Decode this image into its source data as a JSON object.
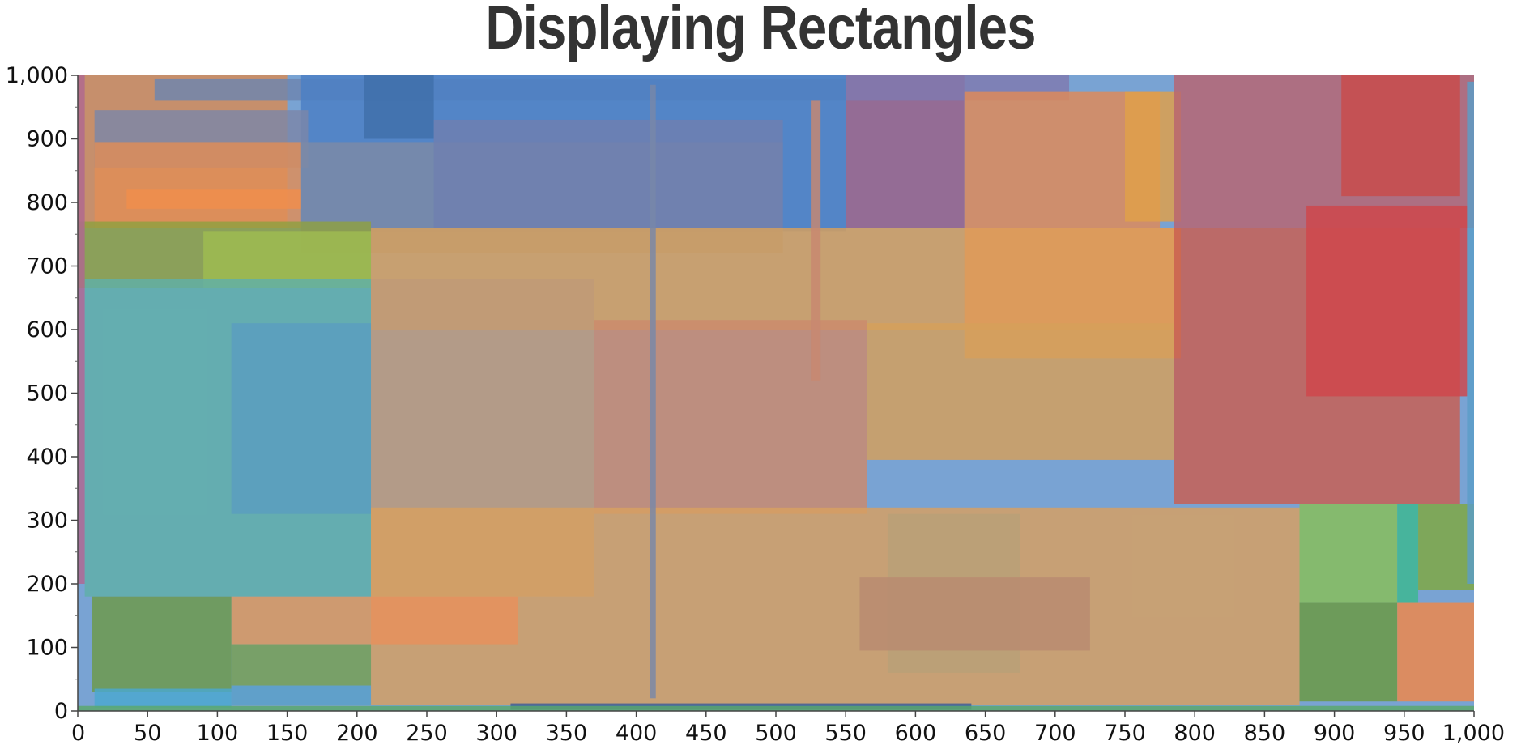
{
  "chart_data": {
    "type": "rectangles",
    "title": "Displaying Rectangles",
    "xlabel": "",
    "ylabel": "",
    "xlim": [
      0,
      1000
    ],
    "ylim": [
      0,
      1000
    ],
    "x_ticks": [
      "0",
      "50",
      "100",
      "150",
      "200",
      "250",
      "300",
      "350",
      "400",
      "450",
      "500",
      "550",
      "600",
      "650",
      "700",
      "750",
      "800",
      "850",
      "900",
      "950",
      "1,000"
    ],
    "y_ticks": [
      "0",
      "100",
      "200",
      "300",
      "400",
      "500",
      "600",
      "700",
      "800",
      "900",
      "1,000"
    ],
    "grid": false,
    "legend": "none",
    "rectangles": [
      {
        "x1": 0,
        "x2": 1000,
        "y1": 0,
        "y2": 1000,
        "color": "#5b8fc9"
      },
      {
        "x1": 0,
        "x2": 150,
        "y1": 760,
        "y2": 1000,
        "color": "#d78b55"
      },
      {
        "x1": 55,
        "x2": 550,
        "y1": 960,
        "y2": 995,
        "color": "#6d85b0"
      },
      {
        "x1": 160,
        "x2": 550,
        "y1": 755,
        "y2": 1000,
        "color": "#4a7fc4"
      },
      {
        "x1": 205,
        "x2": 255,
        "y1": 900,
        "y2": 1000,
        "color": "#3f6faa"
      },
      {
        "x1": 12,
        "x2": 165,
        "y1": 855,
        "y2": 945,
        "color": "#7b86a8"
      },
      {
        "x1": 12,
        "x2": 160,
        "y1": 760,
        "y2": 895,
        "color": "#e08d57"
      },
      {
        "x1": 35,
        "x2": 160,
        "y1": 790,
        "y2": 820,
        "color": "#f08d4c"
      },
      {
        "x1": 160,
        "x2": 505,
        "y1": 720,
        "y2": 895,
        "color": "#7d8aa6"
      },
      {
        "x1": 255,
        "x2": 505,
        "y1": 760,
        "y2": 930,
        "color": "#6f7fb0"
      },
      {
        "x1": 550,
        "x2": 635,
        "y1": 760,
        "y2": 1000,
        "color": "#9a6088"
      },
      {
        "x1": 550,
        "x2": 710,
        "y1": 960,
        "y2": 1000,
        "color": "#7f7ab0"
      },
      {
        "x1": 635,
        "x2": 775,
        "y1": 760,
        "y2": 975,
        "color": "#e08a57"
      },
      {
        "x1": 750,
        "x2": 790,
        "y1": 770,
        "y2": 975,
        "color": "#e0a048"
      },
      {
        "x1": 785,
        "x2": 1000,
        "y1": 760,
        "y2": 1000,
        "color": "#b86470"
      },
      {
        "x1": 905,
        "x2": 990,
        "y1": 810,
        "y2": 1000,
        "color": "#c94a4a"
      },
      {
        "x1": 0,
        "x2": 210,
        "y1": 665,
        "y2": 770,
        "color": "#8fa040"
      },
      {
        "x1": 90,
        "x2": 210,
        "y1": 665,
        "y2": 755,
        "color": "#9fbc50"
      },
      {
        "x1": 210,
        "x2": 790,
        "y1": 600,
        "y2": 760,
        "color": "#d8a05c"
      },
      {
        "x1": 635,
        "x2": 790,
        "y1": 555,
        "y2": 760,
        "color": "#e09a58"
      },
      {
        "x1": 785,
        "x2": 990,
        "y1": 325,
        "y2": 760,
        "color": "#c95e50"
      },
      {
        "x1": 880,
        "x2": 995,
        "y1": 495,
        "y2": 795,
        "color": "#d0454a"
      },
      {
        "x1": 5,
        "x2": 210,
        "y1": 180,
        "y2": 680,
        "color": "#5fb0a8"
      },
      {
        "x1": 110,
        "x2": 210,
        "y1": 310,
        "y2": 610,
        "color": "#5a9ec0"
      },
      {
        "x1": 210,
        "x2": 370,
        "y1": 180,
        "y2": 680,
        "color": "#c09a78"
      },
      {
        "x1": 370,
        "x2": 565,
        "y1": 310,
        "y2": 615,
        "color": "#cc8a6c"
      },
      {
        "x1": 565,
        "x2": 785,
        "y1": 395,
        "y2": 610,
        "color": "#d6a05a"
      },
      {
        "x1": 210,
        "x2": 875,
        "y1": 10,
        "y2": 320,
        "color": "#d8a060"
      },
      {
        "x1": 580,
        "x2": 675,
        "y1": 60,
        "y2": 310,
        "color": "#b8a078"
      },
      {
        "x1": 560,
        "x2": 725,
        "y1": 95,
        "y2": 210,
        "color": "#b88a70"
      },
      {
        "x1": 210,
        "x2": 315,
        "y1": 105,
        "y2": 180,
        "color": "#e8905c"
      },
      {
        "x1": 110,
        "x2": 210,
        "y1": 105,
        "y2": 180,
        "color": "#e0985a"
      },
      {
        "x1": 10,
        "x2": 110,
        "y1": 30,
        "y2": 180,
        "color": "#6c9a48"
      },
      {
        "x1": 110,
        "x2": 210,
        "y1": 40,
        "y2": 105,
        "color": "#78a050"
      },
      {
        "x1": 12,
        "x2": 110,
        "y1": 5,
        "y2": 35,
        "color": "#4aa8d0"
      },
      {
        "x1": 110,
        "x2": 210,
        "y1": 10,
        "y2": 40,
        "color": "#5aa0c8"
      },
      {
        "x1": 875,
        "x2": 945,
        "y1": 170,
        "y2": 325,
        "color": "#88c058"
      },
      {
        "x1": 945,
        "x2": 960,
        "y1": 170,
        "y2": 325,
        "color": "#3cb890"
      },
      {
        "x1": 960,
        "x2": 1000,
        "y1": 190,
        "y2": 325,
        "color": "#7fa840"
      },
      {
        "x1": 875,
        "x2": 945,
        "y1": 15,
        "y2": 170,
        "color": "#6a9a40"
      },
      {
        "x1": 945,
        "x2": 1000,
        "y1": 15,
        "y2": 170,
        "color": "#f08848"
      },
      {
        "x1": 310,
        "x2": 640,
        "y1": 2,
        "y2": 12,
        "color": "#3a5a98"
      },
      {
        "x1": 0,
        "x2": 1000,
        "y1": 0,
        "y2": 8,
        "color": "#5aa86a"
      },
      {
        "x1": 410,
        "x2": 414,
        "y1": 20,
        "y2": 985,
        "color": "#7888a8"
      },
      {
        "x1": 525,
        "x2": 532,
        "y1": 520,
        "y2": 960,
        "color": "#c88870"
      },
      {
        "x1": 995,
        "x2": 1000,
        "y1": 200,
        "y2": 990,
        "color": "#5a9ec8"
      },
      {
        "x1": 0,
        "x2": 5,
        "y1": 200,
        "y2": 1000,
        "color": "#b06890"
      }
    ]
  }
}
